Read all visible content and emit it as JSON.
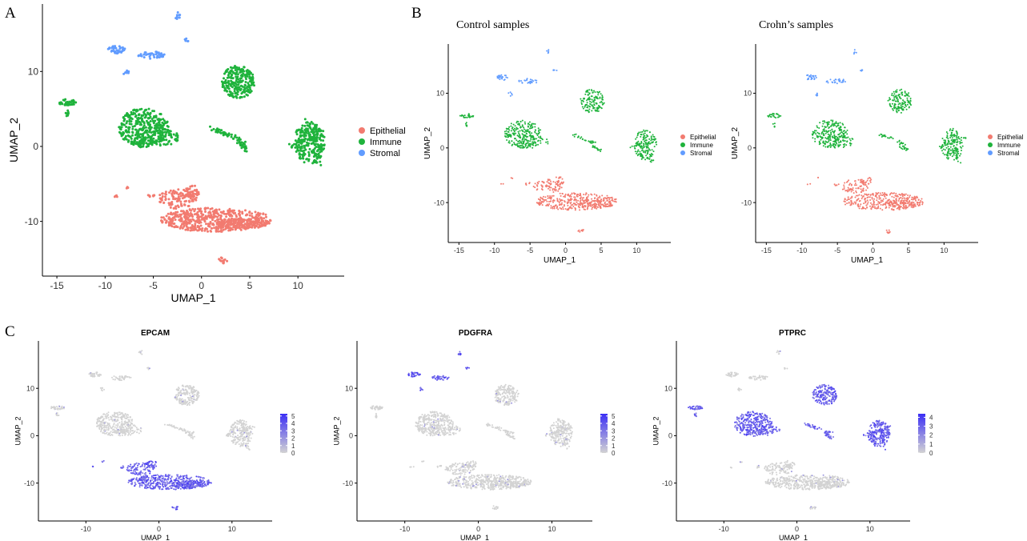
{
  "panel_labels": [
    "A",
    "B",
    "C"
  ],
  "colors": {
    "Epithelial": "#f27b70",
    "Immune": "#1fb33c",
    "Stromal": "#619cff",
    "feature_low": "#d3d3d3",
    "feature_high": "#3b2ef5",
    "axis": "#000000"
  },
  "chart_data": [
    {
      "type": "scatter",
      "panel": "A",
      "title": "",
      "xlabel": "UMAP_1",
      "ylabel": "UMAP_2",
      "xlim": [
        -16.5,
        14.8
      ],
      "ylim": [
        -17.3,
        19
      ],
      "xticks": [
        -15,
        -10,
        -5,
        0,
        5,
        10
      ],
      "yticks": [
        -10,
        0,
        10
      ],
      "legend": {
        "position": "right",
        "entries": [
          "Epithelial",
          "Immune",
          "Stromal"
        ]
      },
      "grid": false
    },
    {
      "type": "scatter",
      "panel": "B",
      "title": "Control samples",
      "xlabel": "UMAP_1",
      "ylabel": "UMAP_2",
      "xlim": [
        -16.5,
        14.8
      ],
      "ylim": [
        -17.3,
        19
      ],
      "xticks": [
        -15,
        -10,
        -5,
        0,
        5,
        10
      ],
      "yticks": [
        -10,
        0,
        10
      ],
      "legend": {
        "position": "right",
        "entries": [
          "Epithelial",
          "Immune",
          "Stromal"
        ]
      },
      "grid": false
    },
    {
      "type": "scatter",
      "panel": "B",
      "title": "Crohn’s  samples",
      "xlabel": "UMAP_1",
      "ylabel": "UMAP_2",
      "xlim": [
        -16.5,
        14.8
      ],
      "ylim": [
        -17.3,
        19
      ],
      "xticks": [
        -15,
        -10,
        -5,
        0,
        5,
        10
      ],
      "yticks": [
        -10,
        0,
        10
      ],
      "legend": {
        "position": "right",
        "entries": [
          "Epithelial",
          "Immune",
          "Stromal"
        ]
      },
      "grid": false
    },
    {
      "type": "scatter",
      "panel": "C",
      "title": "EPCAM",
      "xlabel": "UMAP_1",
      "ylabel": "UMAP_2",
      "xlim": [
        -16.5,
        15.5
      ],
      "ylim": [
        -18,
        20
      ],
      "xticks": [
        -10,
        0,
        10
      ],
      "yticks": [
        -10,
        0,
        10
      ],
      "colorbar": {
        "ticks": [
          0,
          1,
          2,
          3,
          4,
          5
        ],
        "max": 5.3
      },
      "expressed_in": "Epithelial",
      "grid": false
    },
    {
      "type": "scatter",
      "panel": "C",
      "title": "PDGFRA",
      "xlabel": "UMAP_1",
      "ylabel": "UMAP_2",
      "xlim": [
        -16.5,
        15.5
      ],
      "ylim": [
        -18,
        20
      ],
      "xticks": [
        -10,
        0,
        10
      ],
      "yticks": [
        -10,
        0,
        10
      ],
      "colorbar": {
        "ticks": [
          0,
          1,
          2,
          3,
          4,
          5
        ],
        "max": 5.3
      },
      "expressed_in": "Stromal",
      "grid": false
    },
    {
      "type": "scatter",
      "panel": "C",
      "title": "PTPRC",
      "xlabel": "UMAP_1",
      "ylabel": "UMAP_2",
      "xlim": [
        -16.5,
        15.5
      ],
      "ylim": [
        -18,
        20
      ],
      "xticks": [
        -10,
        0,
        10
      ],
      "yticks": [
        -10,
        0,
        10
      ],
      "colorbar": {
        "ticks": [
          0,
          1,
          2,
          3,
          4
        ],
        "max": 4.4
      },
      "expressed_in": "Immune",
      "grid": false
    }
  ],
  "clusters": [
    {
      "group": "Epithelial",
      "shape": "ellipse",
      "cx": 1.5,
      "cy": -9.8,
      "rx": 5.8,
      "ry": 1.6,
      "n": 520
    },
    {
      "group": "Epithelial",
      "shape": "ellipse",
      "cx": -2.5,
      "cy": -7.0,
      "rx": 2.0,
      "ry": 1.3,
      "n": 110
    },
    {
      "group": "Epithelial",
      "shape": "ellipse",
      "cx": 4.2,
      "cy": -10.3,
      "rx": 2.6,
      "ry": 0.7,
      "n": 120
    },
    {
      "group": "Epithelial",
      "shape": "ellipse",
      "cx": -1.0,
      "cy": -6.0,
      "rx": 0.8,
      "ry": 0.8,
      "n": 35
    },
    {
      "group": "Epithelial",
      "shape": "ellipse",
      "cx": 2.2,
      "cy": -15.2,
      "rx": 0.5,
      "ry": 0.4,
      "n": 14
    },
    {
      "group": "Epithelial",
      "shape": "ellipse",
      "cx": -5.2,
      "cy": -6.6,
      "rx": 0.4,
      "ry": 0.3,
      "n": 8
    },
    {
      "group": "Epithelial",
      "shape": "ellipse",
      "cx": -9.0,
      "cy": -6.6,
      "rx": 0.3,
      "ry": 0.2,
      "n": 4
    },
    {
      "group": "Epithelial",
      "shape": "ellipse",
      "cx": -7.6,
      "cy": -5.5,
      "rx": 0.2,
      "ry": 0.2,
      "n": 3
    },
    {
      "group": "Immune",
      "shape": "ellipse",
      "cx": -6.0,
      "cy": 2.5,
      "rx": 2.6,
      "ry": 2.6,
      "n": 360
    },
    {
      "group": "Immune",
      "shape": "ellipse",
      "cx": -4.5,
      "cy": 1.2,
      "rx": 2.2,
      "ry": 1.2,
      "n": 80
    },
    {
      "group": "Immune",
      "shape": "ellipse",
      "cx": 3.8,
      "cy": 8.6,
      "rx": 1.7,
      "ry": 2.2,
      "n": 220
    },
    {
      "group": "Immune",
      "shape": "ellipse",
      "cx": -13.9,
      "cy": 5.9,
      "rx": 1.0,
      "ry": 0.4,
      "n": 40
    },
    {
      "group": "Immune",
      "shape": "ellipse",
      "cx": -13.9,
      "cy": 4.3,
      "rx": 0.2,
      "ry": 0.5,
      "n": 8
    },
    {
      "group": "Immune",
      "shape": "line",
      "x1": 1.0,
      "y1": 2.5,
      "x2": 4.8,
      "y2": 0.5,
      "n": 45
    },
    {
      "group": "Immune",
      "shape": "line",
      "x1": 3.8,
      "y1": 0.5,
      "x2": 4.8,
      "y2": -0.5,
      "n": 25
    },
    {
      "group": "Immune",
      "shape": "ellipse",
      "cx": 11.2,
      "cy": 0.5,
      "rx": 1.6,
      "ry": 2.8,
      "n": 220
    },
    {
      "group": "Immune",
      "shape": "line",
      "x1": 9.2,
      "y1": 0.0,
      "x2": 13.0,
      "y2": 2.0,
      "n": 35
    },
    {
      "group": "Immune",
      "shape": "line",
      "x1": 11.0,
      "y1": 3.6,
      "x2": 12.2,
      "y2": -2.8,
      "n": 35
    },
    {
      "group": "Stromal",
      "shape": "ellipse",
      "cx": -8.8,
      "cy": 12.9,
      "rx": 0.9,
      "ry": 0.5,
      "n": 40
    },
    {
      "group": "Stromal",
      "shape": "ellipse",
      "cx": -5.2,
      "cy": 12.2,
      "rx": 1.4,
      "ry": 0.5,
      "n": 45
    },
    {
      "group": "Stromal",
      "shape": "ellipse",
      "cx": -7.8,
      "cy": 9.8,
      "rx": 0.3,
      "ry": 0.4,
      "n": 8
    },
    {
      "group": "Stromal",
      "shape": "ellipse",
      "cx": -2.5,
      "cy": 17.5,
      "rx": 0.3,
      "ry": 0.5,
      "n": 9
    },
    {
      "group": "Stromal",
      "shape": "ellipse",
      "cx": -1.5,
      "cy": 14.2,
      "rx": 0.3,
      "ry": 0.2,
      "n": 6
    }
  ]
}
